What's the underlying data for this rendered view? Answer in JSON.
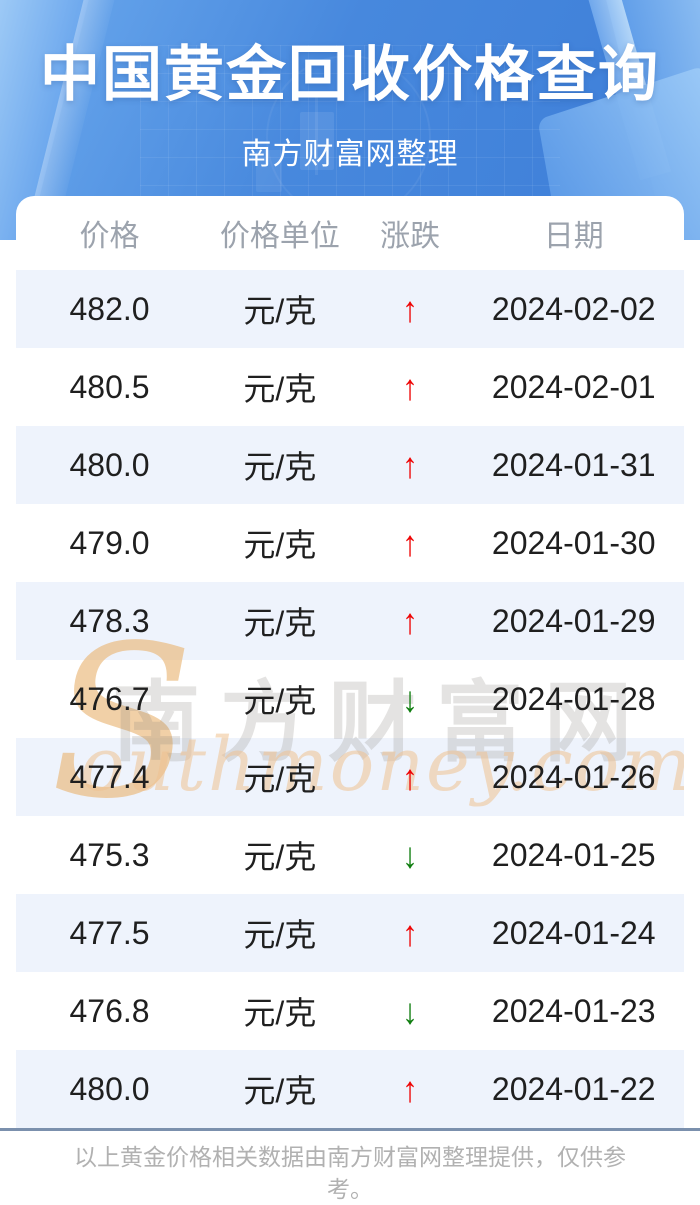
{
  "header": {
    "title": "中国黄金回收价格查询",
    "subtitle": "南方财富网整理"
  },
  "table": {
    "columns": [
      {
        "key": "price",
        "label": "价格"
      },
      {
        "key": "unit",
        "label": "价格单位"
      },
      {
        "key": "trend",
        "label": "涨跌"
      },
      {
        "key": "date",
        "label": "日期"
      }
    ],
    "trend_glyphs": {
      "up": "↑",
      "down": "↓"
    },
    "rows": [
      {
        "price": "482.0",
        "unit": "元/克",
        "trend": "up",
        "date": "2024-02-02"
      },
      {
        "price": "480.5",
        "unit": "元/克",
        "trend": "up",
        "date": "2024-02-01"
      },
      {
        "price": "480.0",
        "unit": "元/克",
        "trend": "up",
        "date": "2024-01-31"
      },
      {
        "price": "479.0",
        "unit": "元/克",
        "trend": "up",
        "date": "2024-01-30"
      },
      {
        "price": "478.3",
        "unit": "元/克",
        "trend": "up",
        "date": "2024-01-29"
      },
      {
        "price": "476.7",
        "unit": "元/克",
        "trend": "down",
        "date": "2024-01-28"
      },
      {
        "price": "477.4",
        "unit": "元/克",
        "trend": "up",
        "date": "2024-01-26"
      },
      {
        "price": "475.3",
        "unit": "元/克",
        "trend": "down",
        "date": "2024-01-25"
      },
      {
        "price": "477.5",
        "unit": "元/克",
        "trend": "up",
        "date": "2024-01-24"
      },
      {
        "price": "476.8",
        "unit": "元/克",
        "trend": "down",
        "date": "2024-01-23"
      },
      {
        "price": "480.0",
        "unit": "元/克",
        "trend": "up",
        "date": "2024-01-22"
      }
    ]
  },
  "watermark": {
    "initial": "S",
    "cn": "南方财富网",
    "en": "outhmoney.com"
  },
  "footer": {
    "note": "以上黄金价格相关数据由南方财富网整理提供，仅供参考。"
  },
  "colors": {
    "up": "#ee0404",
    "down": "#0f7d0f",
    "row_alt": "#eef3fc",
    "divider": "#7b90ad",
    "hero_a": "#6caaee",
    "hero_b": "#4788dd",
    "hero_c": "#3d7ed8"
  }
}
